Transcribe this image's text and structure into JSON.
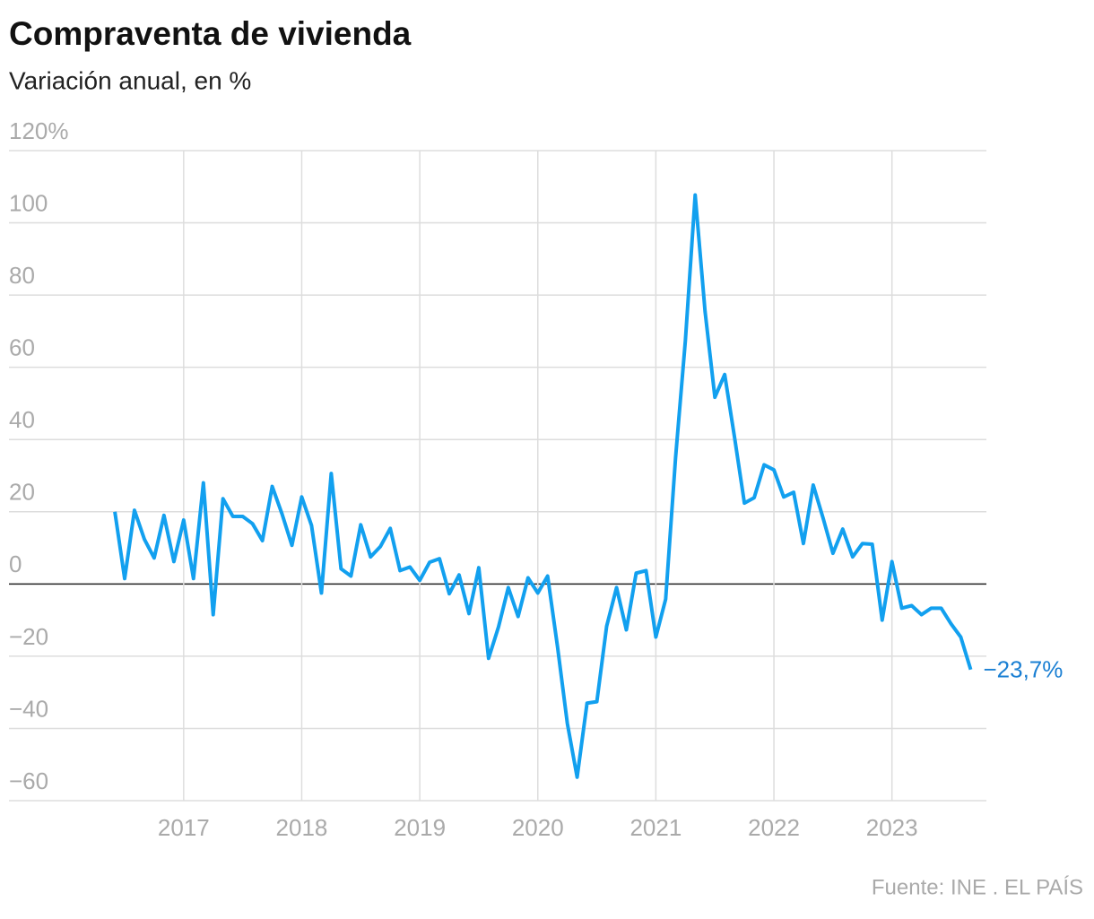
{
  "chart_data": {
    "type": "line",
    "title": "Compraventa de vivienda",
    "subtitle": "Variación anual, en %",
    "source": "Fuente: INE . EL PAÍS",
    "xlim": [
      2015.52,
      2023.8
    ],
    "xticks": [
      2017,
      2018,
      2019,
      2020,
      2021,
      2022,
      2023
    ],
    "ylim": [
      -60,
      120
    ],
    "yticks": [
      {
        "value": -60,
        "label": "−60"
      },
      {
        "value": -40,
        "label": "−40"
      },
      {
        "value": -20,
        "label": "−20"
      },
      0,
      20,
      40,
      60,
      80,
      100,
      {
        "value": 120,
        "label": "120%"
      }
    ],
    "grid": true,
    "x": [
      2016.417,
      2016.5,
      2016.583,
      2016.667,
      2016.75,
      2016.833,
      2016.917,
      2017,
      2017.083,
      2017.167,
      2017.25,
      2017.333,
      2017.417,
      2017.5,
      2017.583,
      2017.667,
      2017.75,
      2017.833,
      2017.917,
      2018,
      2018.083,
      2018.167,
      2018.25,
      2018.333,
      2018.417,
      2018.5,
      2018.583,
      2018.667,
      2018.75,
      2018.833,
      2018.917,
      2019,
      2019.083,
      2019.167,
      2019.25,
      2019.333,
      2019.417,
      2019.5,
      2019.583,
      2019.667,
      2019.75,
      2019.833,
      2019.917,
      2020,
      2020.083,
      2020.167,
      2020.25,
      2020.333,
      2020.417,
      2020.5,
      2020.583,
      2020.667,
      2020.75,
      2020.833,
      2020.917,
      2021,
      2021.083,
      2021.167,
      2021.25,
      2021.333,
      2021.417,
      2021.5,
      2021.583,
      2021.667,
      2021.75,
      2021.833,
      2021.917,
      2022,
      2022.083,
      2022.167,
      2022.25,
      2022.333,
      2022.417,
      2022.5,
      2022.583,
      2022.667,
      2022.75,
      2022.833,
      2022.917,
      2023,
      2023.083,
      2023.167,
      2023.25,
      2023.333,
      2023.417,
      2023.5,
      2023.583,
      2023.667
    ],
    "series": [
      {
        "name": "Compraventa de vivienda",
        "color": "#12a0ef",
        "values": [
          20,
          1.5,
          20.4,
          12.4,
          7.2,
          19,
          6.2,
          17.7,
          1.5,
          28,
          -8.5,
          23.6,
          18.7,
          18.7,
          16.7,
          12,
          27,
          19.4,
          10.7,
          24.1,
          16.2,
          -2.5,
          30.6,
          4.2,
          2.2,
          16.4,
          7.5,
          10.4,
          15.4,
          3.7,
          4.7,
          1,
          6,
          7,
          -2.7,
          2.5,
          -8.2,
          4.5,
          -20.6,
          -11.9,
          -1,
          -9,
          1.7,
          -2.5,
          2.2,
          -17.4,
          -38.6,
          -53.5,
          -33,
          -32.6,
          -11.7,
          -1,
          -12.7,
          3,
          3.7,
          -14.7,
          -4.2,
          35,
          67.4,
          107.7,
          75.4,
          51.7,
          58,
          40.5,
          22.4,
          23.9,
          33,
          31.6,
          24.1,
          25.4,
          11.2,
          27.4,
          18.2,
          8.5,
          15.2,
          7.5,
          11.2,
          11,
          -10,
          6.2,
          -6.7,
          -6,
          -8.5,
          -6.7,
          -6.7,
          -11,
          -14.7,
          -23.7
        ],
        "value_labels": [
          null,
          null,
          null,
          null,
          null,
          null,
          null,
          null,
          null,
          null,
          null,
          null,
          null,
          null,
          null,
          null,
          null,
          null,
          null,
          null,
          null,
          null,
          null,
          null,
          null,
          null,
          null,
          null,
          null,
          null,
          null,
          null,
          null,
          null,
          null,
          null,
          null,
          null,
          null,
          null,
          null,
          null,
          null,
          null,
          null,
          null,
          null,
          null,
          null,
          null,
          null,
          null,
          null,
          null,
          null,
          null,
          null,
          null,
          null,
          null,
          null,
          null,
          null,
          null,
          null,
          null,
          null,
          null,
          null,
          null,
          null,
          null,
          null,
          null,
          null,
          null,
          null,
          null,
          null,
          null,
          null,
          null,
          null,
          null,
          null,
          null,
          null,
          "−23,7%"
        ]
      }
    ]
  }
}
